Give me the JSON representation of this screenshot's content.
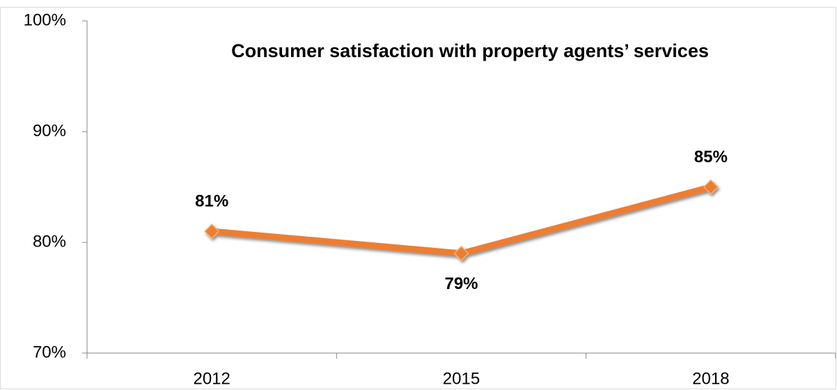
{
  "chart_data": {
    "type": "line",
    "title": "Consumer satisfaction with property agents’ services",
    "categories": [
      "2012",
      "2015",
      "2018"
    ],
    "series": [
      {
        "color": "#ed7d31",
        "values": [
          81,
          79,
          85
        ],
        "value_labels": [
          "81%",
          "79%",
          "85%"
        ]
      }
    ],
    "ylim": [
      70,
      100
    ],
    "yticks": [
      {
        "value": 70,
        "label": "70%"
      },
      {
        "value": 80,
        "label": "80%"
      },
      {
        "value": 90,
        "label": "90%"
      },
      {
        "value": 100,
        "label": "100%"
      }
    ],
    "grid": false
  }
}
